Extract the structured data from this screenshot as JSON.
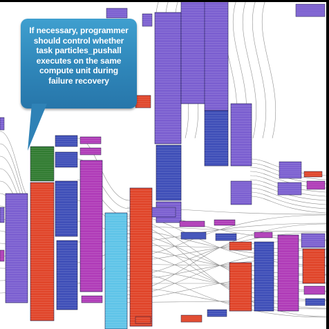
{
  "callout": {
    "text": "If necessary, programmer\nshould control whether\ntask particles_pushall\nexecutes on the same\ncompute unit during\nfailure recovery"
  },
  "colors": {
    "purple": "#7b5fd0",
    "blue": "#3f4fb8",
    "magenta": "#b03cb8",
    "red": "#e0452a",
    "green": "#2f7a2f",
    "cyan": "#5fc4e8",
    "callout": "#2f86b9"
  }
}
